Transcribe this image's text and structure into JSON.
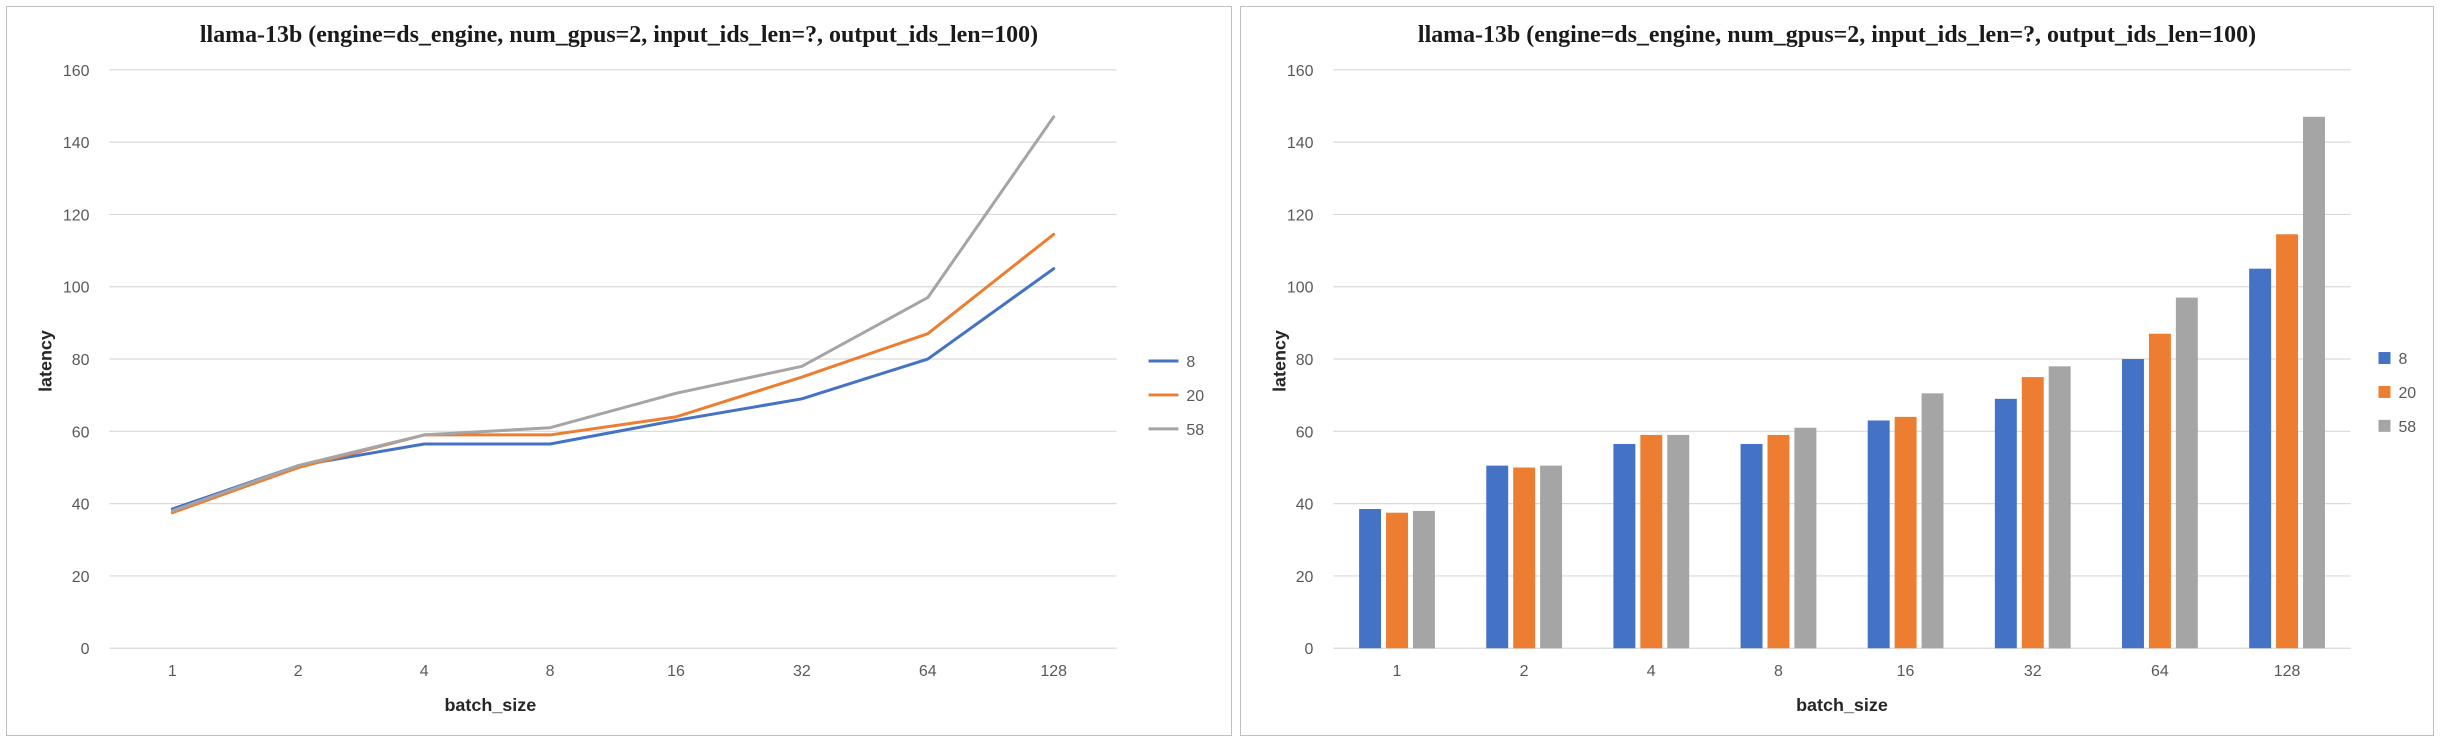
{
  "chart_data": [
    {
      "type": "line",
      "title": "llama-13b (engine=ds_engine, num_gpus=2, input_ids_len=?, output_ids_len=100)",
      "xlabel": "batch_size",
      "ylabel": "latency",
      "categories": [
        "1",
        "2",
        "4",
        "8",
        "16",
        "32",
        "64",
        "128"
      ],
      "yticks": [
        "0",
        "20",
        "40",
        "60",
        "80",
        "100",
        "120",
        "140",
        "160"
      ],
      "ylim": [
        0,
        160
      ],
      "grid": true,
      "legend_position": "right",
      "series": [
        {
          "name": "8",
          "color": "#4472C4",
          "values": [
            38.5,
            50.5,
            56.5,
            56.5,
            63,
            69,
            80,
            105
          ]
        },
        {
          "name": "20",
          "color": "#ED7D31",
          "values": [
            37.5,
            50,
            59,
            59,
            64,
            75,
            87,
            114.5
          ]
        },
        {
          "name": "58",
          "color": "#A5A5A5",
          "values": [
            38,
            50.5,
            59,
            61,
            70.5,
            78,
            97,
            147
          ]
        }
      ]
    },
    {
      "type": "bar",
      "title": "llama-13b (engine=ds_engine, num_gpus=2, input_ids_len=?, output_ids_len=100)",
      "xlabel": "batch_size",
      "ylabel": "latency",
      "categories": [
        "1",
        "2",
        "4",
        "8",
        "16",
        "32",
        "64",
        "128"
      ],
      "yticks": [
        "0",
        "20",
        "40",
        "60",
        "80",
        "100",
        "120",
        "140",
        "160"
      ],
      "ylim": [
        0,
        160
      ],
      "grid": true,
      "legend_position": "right",
      "series": [
        {
          "name": "8",
          "color": "#4472C4",
          "values": [
            38.5,
            50.5,
            56.5,
            56.5,
            63,
            69,
            80,
            105
          ]
        },
        {
          "name": "20",
          "color": "#ED7D31",
          "values": [
            37.5,
            50,
            59,
            59,
            64,
            75,
            87,
            114.5
          ]
        },
        {
          "name": "58",
          "color": "#A5A5A5",
          "values": [
            38,
            50.5,
            59,
            61,
            70.5,
            78,
            97,
            147
          ]
        }
      ]
    }
  ]
}
